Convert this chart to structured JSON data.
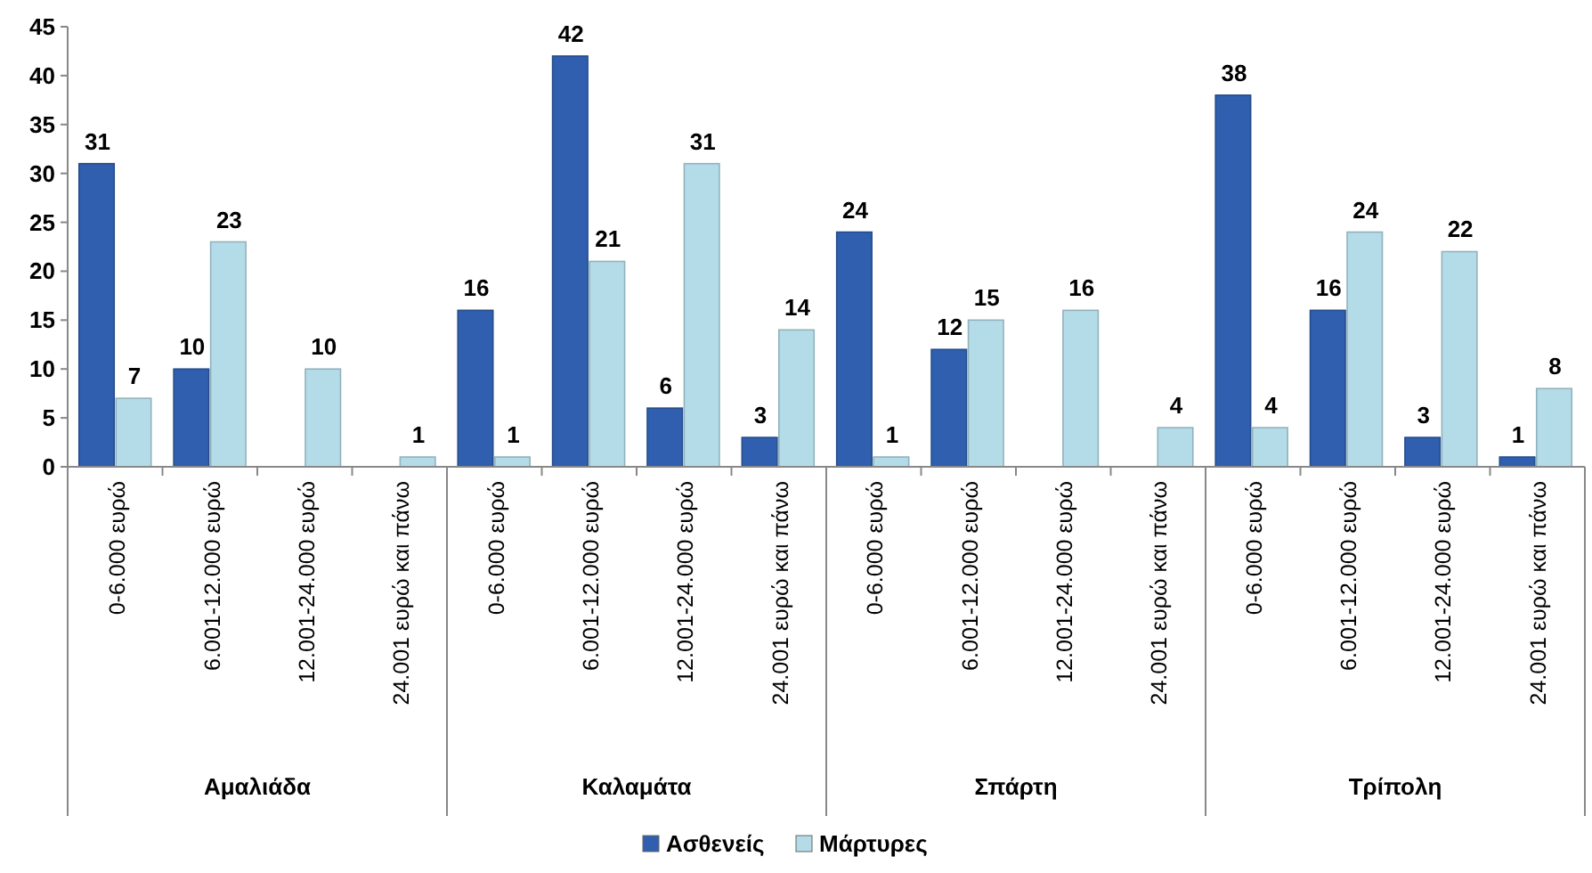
{
  "chart_data": {
    "type": "bar",
    "categories": [
      "0-6.000 ευρώ",
      "6.001-12.000 ευρώ",
      "12.001-24.000 ευρώ",
      "24.001 ευρώ και πάνω",
      "0-6.000 ευρώ",
      "6.001-12.000 ευρώ",
      "12.001-24.000 ευρώ",
      "24.001 ευρώ και πάνω",
      "0-6.000 ευρώ",
      "6.001-12.000 ευρώ",
      "12.001-24.000 ευρώ",
      "24.001 ευρώ και πάνω",
      "0-6.000 ευρώ",
      "6.001-12.000 ευρώ",
      "12.001-24.000 ευρώ",
      "24.001 ευρώ και πάνω"
    ],
    "series": [
      {
        "name": "Ασθενείς",
        "color": "#2f5fae",
        "values": [
          31,
          10,
          0,
          0,
          16,
          42,
          6,
          3,
          24,
          12,
          0,
          0,
          38,
          16,
          3,
          1
        ],
        "value_labels": [
          "31",
          "10",
          null,
          null,
          "16",
          "42",
          "6",
          "3",
          "24",
          "12",
          null,
          null,
          "38",
          "16",
          "3",
          "1"
        ]
      },
      {
        "name": "Μάρτυρες",
        "color": "#b4dce8",
        "values": [
          7,
          23,
          10,
          1,
          1,
          21,
          31,
          14,
          1,
          15,
          16,
          4,
          4,
          24,
          22,
          8
        ],
        "value_labels": [
          "7",
          "23",
          "10",
          "1",
          "1",
          "21",
          "31",
          "14",
          "1",
          "15",
          "16",
          "4",
          "4",
          "24",
          "22",
          "8"
        ]
      }
    ],
    "annotations": [
      "Αμαλιάδα",
      "Καλαμάτα",
      "Σπάρτη",
      "Τρίπολη"
    ],
    "ylim": [
      0,
      45
    ],
    "yticks": [
      0,
      5,
      10,
      15,
      20,
      25,
      30,
      35,
      40,
      45
    ],
    "grid": false,
    "legend": "bottom"
  }
}
